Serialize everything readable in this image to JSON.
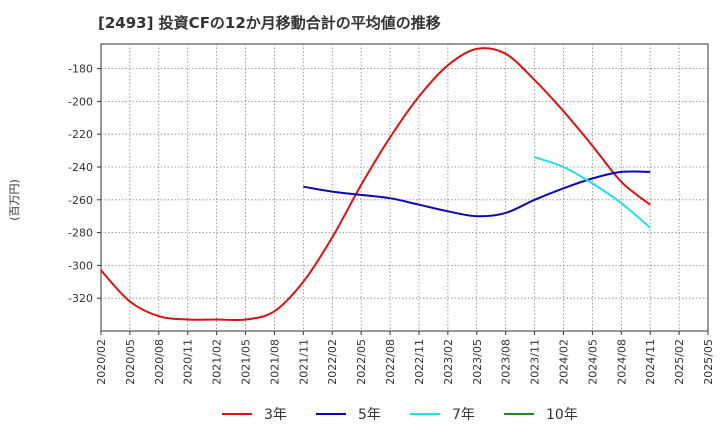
{
  "chart_data": {
    "type": "line",
    "title": "[2493]  投資CFの12か月移動合計の平均値の推移",
    "ylabel": "(百万円)",
    "xlabel": "",
    "ylim": [
      -340,
      -165
    ],
    "yticks": [
      -180,
      -200,
      -220,
      -240,
      -260,
      -280,
      -300,
      -320
    ],
    "grid": true,
    "legend_position": "bottom",
    "x": [
      "2020/02",
      "2020/05",
      "2020/08",
      "2020/11",
      "2021/02",
      "2021/05",
      "2021/08",
      "2021/11",
      "2022/02",
      "2022/05",
      "2022/08",
      "2022/11",
      "2023/02",
      "2023/05",
      "2023/08",
      "2023/11",
      "2024/02",
      "2024/05",
      "2024/08",
      "2024/11",
      "2025/02",
      "2025/05"
    ],
    "series": [
      {
        "name": "3年",
        "color": "#dd1111",
        "values": [
          -303,
          -322,
          -331,
          -333,
          -333,
          -333,
          -328,
          -310,
          -283,
          -251,
          -222,
          -197,
          -178,
          -168,
          -171,
          -187,
          -206,
          -227,
          -249,
          -263,
          null,
          null
        ]
      },
      {
        "name": "5年",
        "color": "#0a0ab4",
        "values": [
          null,
          null,
          null,
          null,
          null,
          null,
          null,
          -252,
          -255,
          -257,
          -259,
          -263,
          -267,
          -270,
          -268,
          -260,
          -253,
          -247,
          -243,
          -243,
          null,
          null
        ]
      },
      {
        "name": "7年",
        "color": "#22ddee",
        "values": [
          null,
          null,
          null,
          null,
          null,
          null,
          null,
          null,
          null,
          null,
          null,
          null,
          null,
          null,
          null,
          -234,
          -240,
          -250,
          -262,
          -277,
          null,
          null
        ]
      },
      {
        "name": "10年",
        "color": "#228b22",
        "values": [
          null,
          null,
          null,
          null,
          null,
          null,
          null,
          null,
          null,
          null,
          null,
          null,
          null,
          null,
          null,
          null,
          null,
          null,
          null,
          null,
          null,
          null
        ]
      }
    ]
  }
}
